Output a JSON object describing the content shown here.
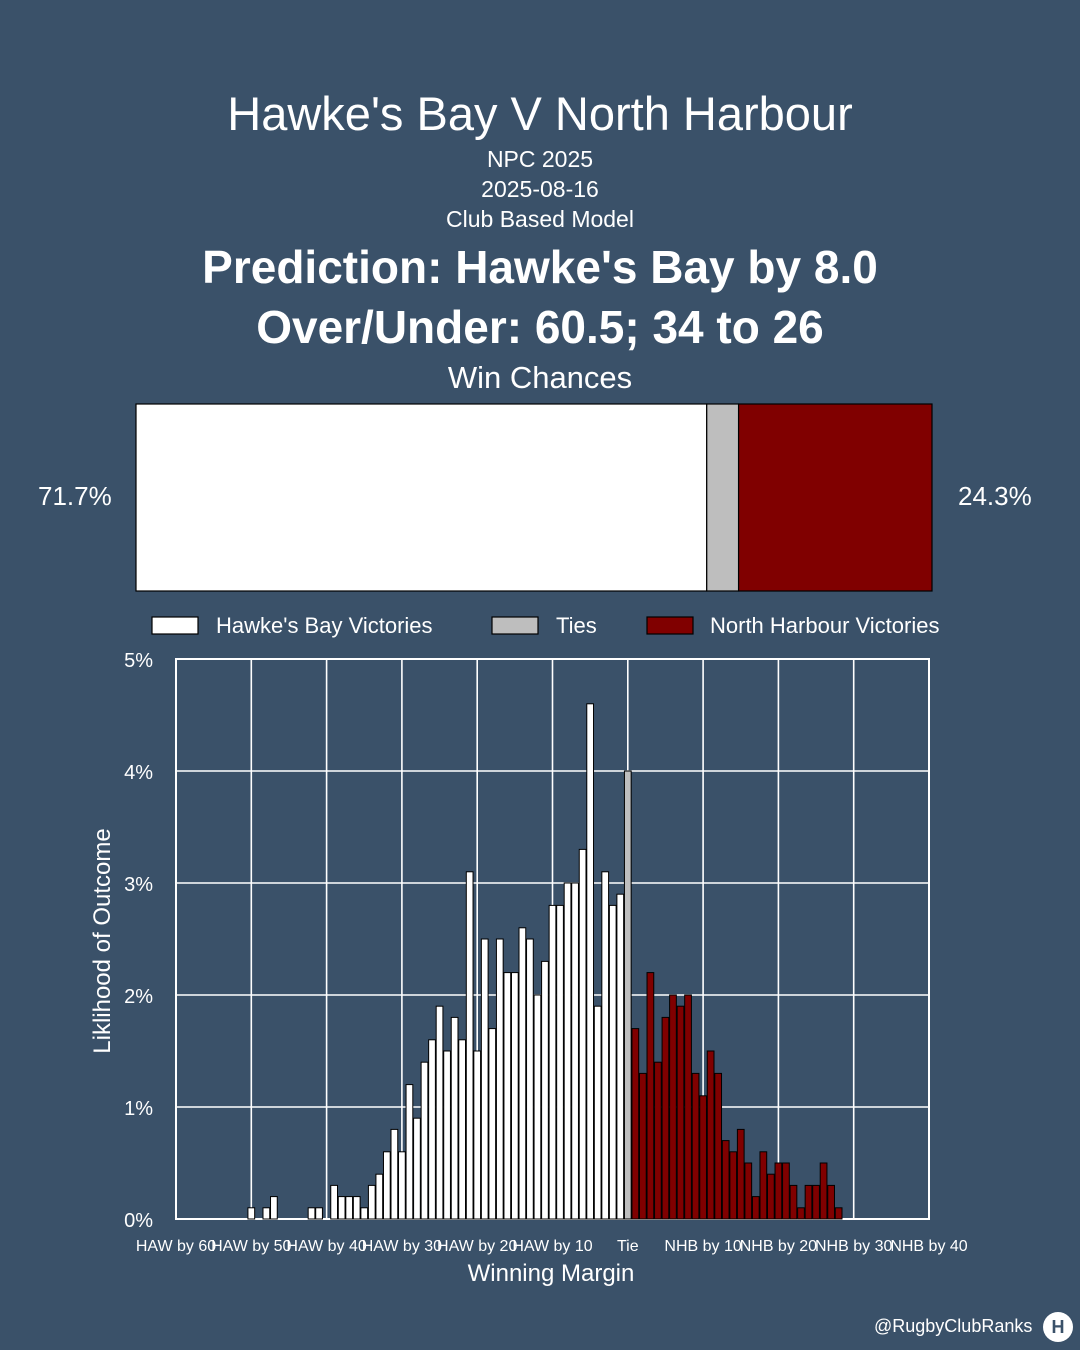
{
  "header": {
    "title": "Hawke's Bay V North Harbour",
    "competition": "NPC 2025",
    "date": "2025-08-16",
    "model": "Club Based Model",
    "prediction": "Prediction: Hawke's Bay by 8.0",
    "over_under": "Over/Under: 60.5; 34 to 26",
    "win_chances_title": "Win Chances"
  },
  "win_chances": {
    "home_label": "71.7%",
    "away_label": "24.3%",
    "home": 71.7,
    "tie": 4.0,
    "away": 24.3
  },
  "legend": {
    "home": "Hawke's Bay Victories",
    "tie": "Ties",
    "away": "North Harbour Victories"
  },
  "colors": {
    "background": "#3a5169",
    "home": "#ffffff",
    "tie": "#bebebe",
    "away": "#800000"
  },
  "footer": {
    "watermark": "@RugbyClubRanks",
    "logo": "H"
  },
  "chart_data": {
    "type": "bar",
    "xlabel": "Winning Margin",
    "ylabel": "Liklihood of Outcome",
    "xlim": [
      -60,
      40
    ],
    "ylim": [
      0,
      5
    ],
    "grid": true,
    "y_ticks": [
      "0%",
      "1%",
      "2%",
      "3%",
      "4%",
      "5%"
    ],
    "y_tick_values": [
      0,
      1,
      2,
      3,
      4,
      5
    ],
    "x_ticks": [
      "HAW by 60",
      "HAW by 50",
      "HAW by 40",
      "HAW by 30",
      "HAW by 20",
      "HAW by 10",
      "Tie",
      "NHB by 10",
      "NHB by 20",
      "NHB by 30",
      "NHB by 40"
    ],
    "x_tick_values": [
      -60,
      -50,
      -40,
      -30,
      -20,
      -10,
      0,
      10,
      20,
      30,
      40
    ],
    "series": [
      {
        "name": "Hawke's Bay Victories",
        "x": [
          -50,
          -49,
          -48,
          -47,
          -46,
          -45,
          -44,
          -43,
          -42,
          -41,
          -40,
          -39,
          -38,
          -37,
          -36,
          -35,
          -34,
          -33,
          -32,
          -31,
          -30,
          -29,
          -28,
          -27,
          -26,
          -25,
          -24,
          -23,
          -22,
          -21,
          -20,
          -19,
          -18,
          -17,
          -16,
          -15,
          -14,
          -13,
          -12,
          -11,
          -10,
          -9,
          -8,
          -7,
          -6,
          -5,
          -4,
          -3,
          -2,
          -1
        ],
        "values": [
          0.1,
          0,
          0.1,
          0.2,
          0,
          0,
          0,
          0,
          0.1,
          0.1,
          0,
          0.3,
          0.2,
          0.2,
          0.2,
          0.1,
          0.3,
          0.4,
          0.6,
          0.8,
          0.6,
          1.2,
          0.9,
          1.4,
          1.6,
          1.9,
          1.5,
          1.8,
          1.6,
          3.1,
          1.5,
          2.5,
          1.7,
          2.5,
          2.2,
          2.2,
          2.6,
          2.5,
          2.0,
          2.3,
          2.8,
          2.8,
          3.0,
          3.0,
          3.3,
          4.6,
          1.9,
          3.1,
          2.8,
          2.9
        ]
      },
      {
        "name": "Ties",
        "x": [
          0
        ],
        "values": [
          4.0
        ]
      },
      {
        "name": "North Harbour Victories",
        "x": [
          1,
          2,
          3,
          4,
          5,
          6,
          7,
          8,
          9,
          10,
          11,
          12,
          13,
          14,
          15,
          16,
          17,
          18,
          19,
          20,
          21,
          22,
          23,
          24,
          25,
          26,
          27,
          28
        ],
        "values": [
          1.7,
          1.3,
          2.2,
          1.4,
          1.8,
          2.0,
          1.9,
          2.0,
          1.3,
          1.1,
          1.5,
          1.3,
          0.7,
          0.6,
          0.8,
          0.5,
          0.2,
          0.6,
          0.4,
          0.5,
          0.5,
          0.3,
          0.1,
          0.3,
          0.3,
          0.5,
          0.3,
          0.1
        ]
      }
    ]
  }
}
